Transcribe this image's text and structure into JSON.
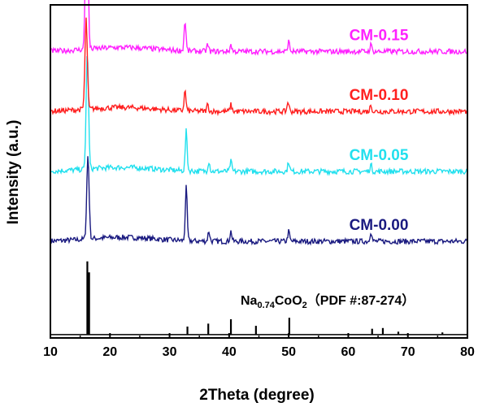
{
  "chart_data": {
    "type": "line",
    "title": "",
    "xlabel": "2Theta (degree)",
    "ylabel": "Intensity (a.u.)",
    "xlim": [
      10,
      80
    ],
    "x_ticks": [
      10,
      20,
      30,
      40,
      50,
      60,
      70,
      80
    ],
    "y_ticks_shown": false,
    "grid": false,
    "legend": "inline labels above each pattern",
    "reference": {
      "name_parts": [
        "Na",
        "0.74",
        "CoO",
        "2",
        "（PDF #:87-274）"
      ],
      "color": "#000000",
      "peaks": [
        {
          "x": 16.2,
          "rel": 1.0
        },
        {
          "x": 16.5,
          "rel": 0.85
        },
        {
          "x": 33.0,
          "rel": 0.11
        },
        {
          "x": 36.5,
          "rel": 0.15
        },
        {
          "x": 40.3,
          "rel": 0.21
        },
        {
          "x": 44.5,
          "rel": 0.12
        },
        {
          "x": 50.1,
          "rel": 0.23
        },
        {
          "x": 64.0,
          "rel": 0.08
        },
        {
          "x": 65.8,
          "rel": 0.09
        },
        {
          "x": 68.4,
          "rel": 0.04
        },
        {
          "x": 75.8,
          "rel": 0.03
        }
      ]
    },
    "series": [
      {
        "name": "CM-0.00",
        "color": "#1a1a80",
        "baseline": 0.29,
        "peaks": [
          {
            "x": 16.3,
            "h": 0.25
          },
          {
            "x": 32.8,
            "h": 0.16
          },
          {
            "x": 36.6,
            "h": 0.03
          },
          {
            "x": 40.3,
            "h": 0.03
          },
          {
            "x": 50.0,
            "h": 0.03
          },
          {
            "x": 63.8,
            "h": 0.03
          }
        ]
      },
      {
        "name": "CM-0.05",
        "color": "#22e0ee",
        "baseline": 0.5,
        "peaks": [
          {
            "x": 16.2,
            "h": 0.35
          },
          {
            "x": 32.8,
            "h": 0.12
          },
          {
            "x": 36.6,
            "h": 0.03
          },
          {
            "x": 40.3,
            "h": 0.03
          },
          {
            "x": 50.0,
            "h": 0.03
          },
          {
            "x": 63.8,
            "h": 0.02
          }
        ]
      },
      {
        "name": "CM-0.10",
        "color": "#ff2020",
        "baseline": 0.68,
        "peaks": [
          {
            "x": 16.0,
            "h": 0.27
          },
          {
            "x": 32.6,
            "h": 0.06
          },
          {
            "x": 36.4,
            "h": 0.02
          },
          {
            "x": 40.3,
            "h": 0.02
          },
          {
            "x": 49.9,
            "h": 0.03
          },
          {
            "x": 63.8,
            "h": 0.02
          }
        ]
      },
      {
        "name": "CM-0.15",
        "color": "#ff22ff",
        "baseline": 0.86,
        "peaks": [
          {
            "x": 16.1,
            "h": 0.6
          },
          {
            "x": 32.6,
            "h": 0.09
          },
          {
            "x": 36.4,
            "h": 0.02
          },
          {
            "x": 40.3,
            "h": 0.02
          },
          {
            "x": 50.0,
            "h": 0.03
          },
          {
            "x": 63.8,
            "h": 0.02
          }
        ]
      }
    ]
  }
}
